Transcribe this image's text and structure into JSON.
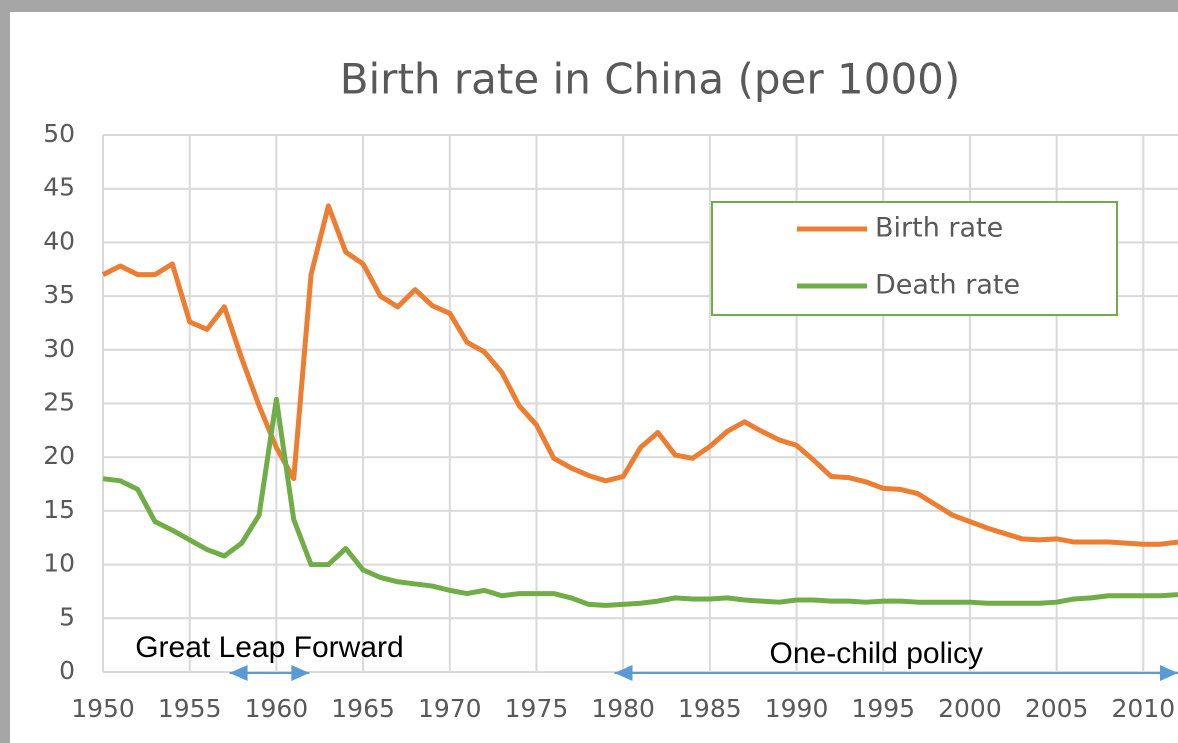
{
  "chart_data": {
    "type": "line",
    "title": "Birth rate in China (per 1000)",
    "x": [
      1950,
      1951,
      1952,
      1953,
      1954,
      1955,
      1956,
      1957,
      1958,
      1959,
      1960,
      1961,
      1962,
      1963,
      1964,
      1965,
      1966,
      1967,
      1968,
      1969,
      1970,
      1971,
      1972,
      1973,
      1974,
      1975,
      1976,
      1977,
      1978,
      1979,
      1980,
      1981,
      1982,
      1983,
      1984,
      1985,
      1986,
      1987,
      1988,
      1989,
      1990,
      1991,
      1992,
      1993,
      1994,
      1995,
      1996,
      1997,
      1998,
      1999,
      2000,
      2001,
      2002,
      2003,
      2004,
      2005,
      2006,
      2007,
      2008,
      2009,
      2010,
      2011,
      2012
    ],
    "series": [
      {
        "name": "Birth rate",
        "color": "#ed7d31",
        "values": [
          37,
          37.8,
          37,
          37,
          38,
          32.6,
          31.9,
          34,
          29.2,
          24.8,
          20.9,
          18,
          37,
          43.4,
          39.1,
          38,
          35,
          34,
          35.6,
          34.1,
          33.4,
          30.7,
          29.8,
          27.9,
          24.8,
          23,
          19.9,
          19,
          18.3,
          17.8,
          18.2,
          20.9,
          22.3,
          20.2,
          19.9,
          21,
          22.4,
          23.3,
          22.4,
          21.6,
          21.1,
          19.7,
          18.2,
          18.1,
          17.7,
          17.1,
          17,
          16.6,
          15.6,
          14.6,
          14,
          13.4,
          12.9,
          12.4,
          12.3,
          12.4,
          12.1,
          12.1,
          12.1,
          12,
          11.9,
          11.9,
          12.1
        ]
      },
      {
        "name": "Death rate",
        "color": "#70ad47",
        "values": [
          18,
          17.8,
          17,
          14,
          13.2,
          12.3,
          11.4,
          10.8,
          12,
          14.6,
          25.4,
          14.2,
          10,
          10,
          11.5,
          9.5,
          8.8,
          8.4,
          8.2,
          8,
          7.6,
          7.3,
          7.6,
          7.1,
          7.3,
          7.3,
          7.3,
          6.9,
          6.3,
          6.2,
          6.3,
          6.4,
          6.6,
          6.9,
          6.8,
          6.8,
          6.9,
          6.7,
          6.6,
          6.5,
          6.7,
          6.7,
          6.6,
          6.6,
          6.5,
          6.6,
          6.6,
          6.5,
          6.5,
          6.5,
          6.5,
          6.4,
          6.4,
          6.4,
          6.4,
          6.5,
          6.8,
          6.9,
          7.1,
          7.1,
          7.1,
          7.1,
          7.2
        ]
      }
    ],
    "xlim": [
      1950,
      2012
    ],
    "xticks": [
      1950,
      1955,
      1960,
      1965,
      1970,
      1975,
      1980,
      1985,
      1990,
      1995,
      2000,
      2005,
      2010
    ],
    "ylim": [
      0,
      50
    ],
    "yticks": [
      0,
      5,
      10,
      15,
      20,
      25,
      30,
      35,
      40,
      45,
      50
    ],
    "grid": true,
    "legend": "top right",
    "annotations": [
      {
        "text": "Great Leap Forward",
        "x_start": 1957.3,
        "x_end": 1961.9
      },
      {
        "text": "One-child policy",
        "x_start": 1979.5,
        "x_end": 2012
      }
    ]
  }
}
